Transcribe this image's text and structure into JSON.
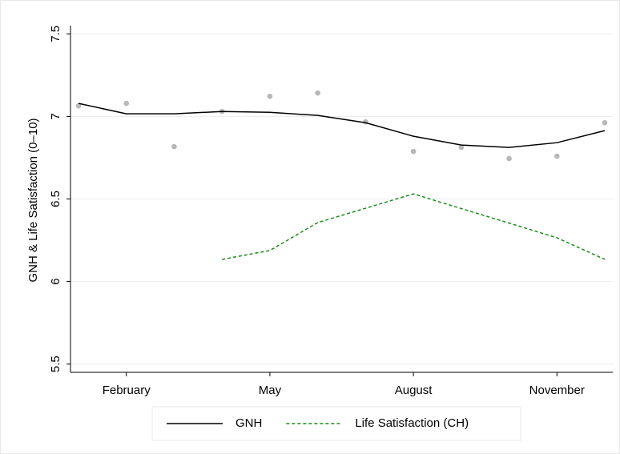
{
  "chart_data": {
    "type": "line",
    "ylabel": "GNH & Life Satisfaction (0–10)",
    "categories": [
      null,
      "February",
      null,
      null,
      "May",
      null,
      null,
      "August",
      null,
      null,
      "November",
      null
    ],
    "ylim": [
      5.45,
      7.55
    ],
    "yticks": [
      5.5,
      6,
      6.5,
      7,
      7.5
    ],
    "grid": true,
    "legend": "bottom",
    "series": [
      {
        "type": "scatter",
        "color": "#b8b8b8",
        "values": [
          7.064,
          7.079,
          6.817,
          7.03,
          7.122,
          7.142,
          6.967,
          6.788,
          6.812,
          6.745,
          6.759,
          6.962
        ]
      },
      {
        "name": "GNH",
        "color": "#000000",
        "dash": "solid",
        "values": [
          7.079,
          7.016,
          7.016,
          7.03,
          7.025,
          7.006,
          6.962,
          6.88,
          6.827,
          6.812,
          6.841,
          6.914
        ]
      },
      {
        "name": "Life Satisfaction (CH)",
        "color": "#1a8a1a",
        "dash": "dashed",
        "values": [
          null,
          null,
          null,
          6.134,
          6.188,
          6.357,
          6.444,
          6.531,
          6.442,
          6.354,
          6.265,
          6.134
        ]
      }
    ]
  }
}
